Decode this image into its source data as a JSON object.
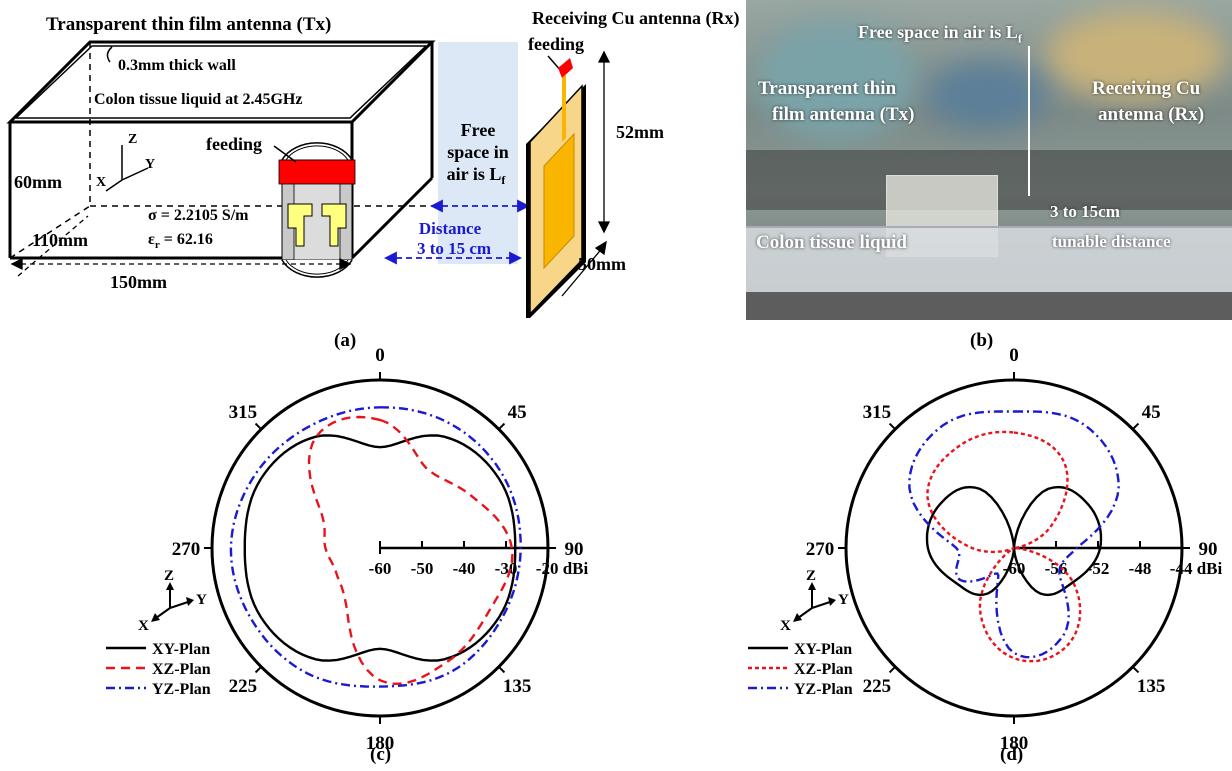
{
  "panel_a": {
    "title": "Transparent thin film antenna (Tx)",
    "wall": "0.3mm thick wall",
    "liquid": "Colon tissue liquid at 2.45GHz",
    "feeding_tx": "feeding",
    "axis_z": "Z",
    "axis_y": "Y",
    "axis_x": "X",
    "height": "60mm",
    "depth": "110mm",
    "width": "150mm",
    "sigma": "σ = 2.2105 S/m",
    "eps_main": "ε",
    "eps_sub": "r",
    "eps_val": " = 62.16",
    "free_space_1": "Free",
    "free_space_2": "space in",
    "free_space_3": "air is L",
    "free_space_sub": "f",
    "distance_1": "Distance",
    "distance_2": "3 to 15 cm",
    "rx_title": "Receiving Cu antenna (Rx)",
    "feeding_rx": "feeding",
    "rx_height": "52mm",
    "rx_width": "50mm"
  },
  "panel_b": {
    "free_space": "Free space in air is L",
    "free_space_sub": "f",
    "tx_1": "Transparent thin",
    "tx_2": "film antenna (Tx)",
    "rx_1": "Receiving Cu",
    "rx_2": "antenna (Rx)",
    "liquid": "Colon tissue liquid",
    "dist_1": "3 to 15cm",
    "dist_2": "tunable distance"
  },
  "labels": {
    "a": "(a)",
    "b": "(b)",
    "c": "(c)",
    "d": "(d)"
  },
  "polar_common": {
    "angle_labels": [
      "0",
      "45",
      "90",
      "135",
      "180",
      "225",
      "270",
      "315"
    ],
    "axis_z": "Z",
    "axis_y": "Y",
    "axis_x": "X",
    "legend": [
      "XY-Plan",
      "XZ-Plan",
      "YZ-Plan"
    ],
    "colors": {
      "xy": "#000000",
      "xz": "#e8141b",
      "yz": "#1a1ad1"
    }
  },
  "chart_data": [
    {
      "type": "polar",
      "panel": "c",
      "radial_ticks": [
        "-60",
        "-50",
        "-40",
        "-30",
        "-20 dBi"
      ],
      "rlim": [
        -60,
        -20
      ],
      "angles_deg": [
        0,
        30,
        60,
        90,
        120,
        150,
        180,
        210,
        240,
        270,
        300,
        330
      ],
      "series": [
        {
          "name": "XY-Plan",
          "style": "solid",
          "values": [
            -36,
            -29.4,
            -27.2,
            -27.8,
            -27.2,
            -29.4,
            -36,
            -29.4,
            -27.2,
            -27.8,
            -27.2,
            -29.4
          ]
        },
        {
          "name": "XZ-Plan",
          "style": "dashed",
          "values": [
            -29.5,
            -38,
            -35,
            -28.6,
            -30,
            -28.5,
            -28.5,
            -44,
            -48,
            -47,
            -44,
            -29.5
          ]
        },
        {
          "name": "YZ-Plan",
          "style": "dashdot",
          "values": [
            -26.5,
            -26,
            -26,
            -26.5,
            -26.5,
            -26,
            -27,
            -25.5,
            -25,
            -24.5,
            -25.5,
            -26.5
          ]
        }
      ]
    },
    {
      "type": "polar",
      "panel": "d",
      "radial_ticks": [
        "-60",
        "-56",
        "-52",
        "-48",
        "-44 dBi"
      ],
      "rlim": [
        -60,
        -44
      ],
      "angles_deg": [
        0,
        30,
        60,
        90,
        120,
        150,
        180,
        210,
        240,
        270,
        300,
        330
      ],
      "series": [
        {
          "name": "XY-Plan",
          "style": "solid",
          "values": [
            -60,
            -53.5,
            -51.8,
            -51.8,
            -53.5,
            -55,
            -60,
            -55,
            -53.5,
            -51.8,
            -51.8,
            -53.5
          ]
        },
        {
          "name": "XZ-Plan",
          "style": "dotted",
          "values": [
            -49,
            -50.5,
            -56,
            -60,
            -53.5,
            -49.5,
            -49.5,
            -53.5,
            -60,
            -56,
            -50.5,
            -49
          ]
        },
        {
          "name": "YZ-Plan",
          "style": "dashdot",
          "values": [
            -47,
            -46.5,
            -48.5,
            -54,
            -55,
            -50.5,
            -50,
            -57,
            -54,
            -54.5,
            -48.5,
            -46.5
          ]
        }
      ]
    }
  ]
}
